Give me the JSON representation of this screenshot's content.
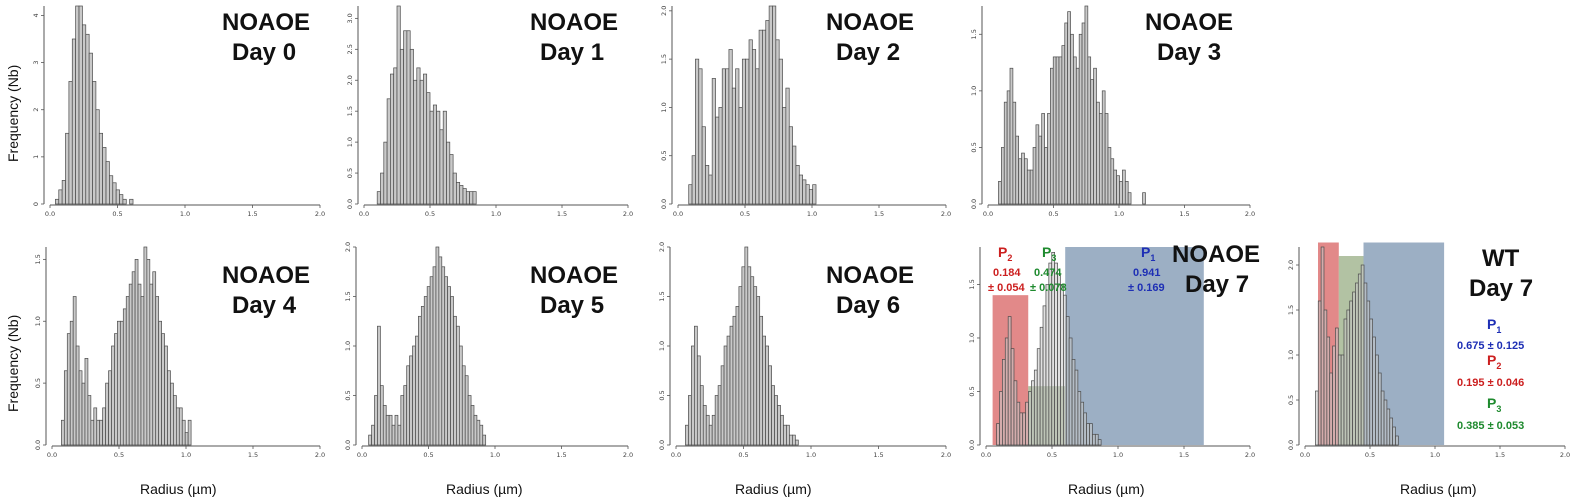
{
  "colors": {
    "bar_fill": "#c9c9c9",
    "bar_stroke": "#4a4a4a",
    "p1": "#1e2fb5",
    "p2": "#cc1f1f",
    "p3": "#1e8a2e",
    "p1_region": "#5a7a9c",
    "p2_region": "#cf3b3b",
    "p3_region": "#7f9966"
  },
  "chart_data": [
    {
      "type": "bar",
      "title_line1": "NOAOE",
      "title_line2": "Day 0",
      "xlabel": "",
      "ylabel": "Frequency (Nb)",
      "xlim": [
        0,
        2
      ],
      "ylim": [
        0,
        4.2
      ],
      "x_ticks": [
        "0.0",
        "0.5",
        "1.0",
        "1.5",
        "2.0"
      ],
      "y_ticks": [
        "0",
        "1",
        "2",
        "3",
        "4"
      ],
      "bin_start": 0.04,
      "bin_width": 0.025,
      "values": [
        0.1,
        0.3,
        0.5,
        1.5,
        2.6,
        3.5,
        4.2,
        4.2,
        3.8,
        3.6,
        3.2,
        2.6,
        2.0,
        1.5,
        1.2,
        0.9,
        0.6,
        0.45,
        0.3,
        0.2,
        0.1,
        0,
        0.1
      ],
      "regions": []
    },
    {
      "type": "bar",
      "title_line1": "NOAOE",
      "title_line2": "Day 1",
      "xlabel": "",
      "ylabel": "",
      "xlim": [
        0,
        2
      ],
      "ylim": [
        0,
        3.2
      ],
      "x_ticks": [
        "0.0",
        "0.5",
        "1.0",
        "1.5",
        "2.0"
      ],
      "y_ticks": [
        "0.0",
        "0.5",
        "1.0",
        "1.5",
        "2.0",
        "2.5",
        "3.0"
      ],
      "bin_start": 0.1,
      "bin_width": 0.025,
      "values": [
        0.2,
        0.5,
        1.0,
        1.7,
        2.1,
        2.2,
        3.2,
        2.5,
        2.8,
        2.8,
        2.5,
        2.0,
        2.2,
        2.0,
        2.1,
        1.8,
        1.5,
        1.6,
        1.5,
        1.2,
        1.5,
        1.0,
        0.8,
        0.5,
        0.35,
        0.3,
        0.25,
        0.2,
        0.2,
        0.2
      ],
      "regions": []
    },
    {
      "type": "bar",
      "title_line1": "NOAOE",
      "title_line2": "Day 2",
      "xlabel": "",
      "ylabel": "",
      "xlim": [
        0,
        2
      ],
      "ylim": [
        0,
        2.05
      ],
      "x_ticks": [
        "0.0",
        "0.5",
        "1.0",
        "1.5",
        "2.0"
      ],
      "y_ticks": [
        "0.0",
        "0.5",
        "1.0",
        "1.5",
        "2.0"
      ],
      "bin_start": 0.08,
      "bin_width": 0.025,
      "values": [
        0.2,
        0.5,
        1.5,
        1.4,
        0.8,
        0.4,
        0.3,
        1.3,
        0.9,
        1.0,
        1.4,
        1.4,
        1.6,
        1.2,
        1.4,
        1.0,
        1.5,
        1.5,
        1.7,
        1.6,
        1.4,
        1.8,
        1.8,
        1.9,
        2.05,
        2.05,
        1.7,
        1.5,
        1.0,
        1.2,
        0.8,
        0.6,
        0.4,
        0.3,
        0.25,
        0.2,
        0.15,
        0.2
      ],
      "regions": []
    },
    {
      "type": "bar",
      "title_line1": "NOAOE",
      "title_line2": "Day 3",
      "xlabel": "",
      "ylabel": "",
      "xlim": [
        0,
        2
      ],
      "ylim": [
        0,
        1.75
      ],
      "x_ticks": [
        "0.0",
        "0.5",
        "1.0",
        "1.5",
        "2.0"
      ],
      "y_ticks": [
        "0.0",
        "0.5",
        "1.0",
        "1.5"
      ],
      "bin_start": 0.08,
      "bin_width": 0.022,
      "values": [
        0.2,
        0.5,
        0.9,
        1.0,
        1.2,
        0.9,
        0.6,
        0.4,
        0.45,
        0.4,
        0.3,
        0.3,
        0.5,
        0.7,
        0.6,
        0.8,
        0.5,
        0.8,
        1.2,
        1.3,
        1.3,
        1.3,
        1.4,
        1.6,
        1.7,
        1.5,
        1.3,
        1.2,
        1.5,
        1.6,
        1.75,
        1.3,
        1.1,
        1.2,
        0.9,
        0.8,
        1.0,
        0.8,
        0.5,
        0.4,
        0.3,
        0.25,
        0.2,
        0.3,
        0.2,
        0.1,
        0,
        0,
        0,
        0,
        0.1
      ],
      "regions": []
    },
    {
      "type": "bar",
      "title_line1": "NOAOE",
      "title_line2": "Day 4",
      "xlabel": "Radius (µm)",
      "ylabel": "Frequency (Nb)",
      "xlim": [
        0,
        2
      ],
      "ylim": [
        0,
        1.6
      ],
      "x_ticks": [
        "0.0",
        "0.5",
        "1.0",
        "1.5",
        "2.0"
      ],
      "y_ticks": [
        "0.0",
        "0.5",
        "1.0",
        "1.5"
      ],
      "bin_start": 0.07,
      "bin_width": 0.022,
      "values": [
        0.2,
        0.6,
        0.9,
        1.0,
        1.2,
        0.8,
        0.6,
        0.5,
        0.7,
        0.4,
        0.2,
        0.3,
        0.2,
        0.2,
        0.3,
        0.5,
        0.6,
        0.8,
        0.9,
        1.0,
        1.0,
        1.1,
        1.2,
        1.3,
        1.4,
        1.5,
        1.3,
        1.2,
        1.6,
        1.5,
        1.3,
        1.4,
        1.2,
        1.0,
        0.9,
        0.8,
        0.6,
        0.5,
        0.4,
        0.3,
        0.3,
        0.2,
        0.1,
        0.2
      ],
      "regions": []
    },
    {
      "type": "bar",
      "title_line1": "NOAOE",
      "title_line2": "Day 5",
      "xlabel": "Radius (µm)",
      "ylabel": "",
      "xlim": [
        0,
        2
      ],
      "ylim": [
        0,
        2.0
      ],
      "x_ticks": [
        "0.0",
        "0.5",
        "1.0",
        "1.5",
        "2.0"
      ],
      "y_ticks": [
        "0.0",
        "0.5",
        "1.0",
        "1.5",
        "2.0"
      ],
      "bin_start": 0.05,
      "bin_width": 0.022,
      "values": [
        0.1,
        0.2,
        0.5,
        1.2,
        0.6,
        0.4,
        0.3,
        0.3,
        0.2,
        0.3,
        0.2,
        0.5,
        0.6,
        0.8,
        0.9,
        1.0,
        1.1,
        1.3,
        1.4,
        1.5,
        1.6,
        1.7,
        1.8,
        2.0,
        1.9,
        1.8,
        1.7,
        1.6,
        1.5,
        1.3,
        1.2,
        1.0,
        0.8,
        0.7,
        0.5,
        0.4,
        0.3,
        0.25,
        0.2,
        0.1
      ],
      "regions": []
    },
    {
      "type": "bar",
      "title_line1": "NOAOE",
      "title_line2": "Day 6",
      "xlabel": "Radius (µm)",
      "ylabel": "",
      "xlim": [
        0,
        2
      ],
      "ylim": [
        0,
        2.0
      ],
      "x_ticks": [
        "0.0",
        "0.5",
        "1.0",
        "1.5",
        "2.0"
      ],
      "y_ticks": [
        "0.0",
        "0.5",
        "1.0",
        "1.5",
        "2.0"
      ],
      "bin_start": 0.07,
      "bin_width": 0.022,
      "values": [
        0.2,
        0.5,
        1.0,
        1.2,
        0.9,
        0.6,
        0.4,
        0.3,
        0.2,
        0.3,
        0.5,
        0.6,
        0.8,
        1.0,
        1.1,
        1.2,
        1.3,
        1.4,
        1.6,
        1.8,
        2.0,
        1.8,
        1.7,
        1.6,
        1.5,
        1.3,
        1.1,
        1.0,
        0.8,
        0.6,
        0.5,
        0.4,
        0.3,
        0.2,
        0.2,
        0.1,
        0.1,
        0.05
      ],
      "regions": []
    },
    {
      "type": "bar",
      "title_line1": "NOAOE",
      "title_line2": "Day 7",
      "xlabel": "Radius (µm)",
      "ylabel": "",
      "xlim": [
        0,
        2
      ],
      "ylim": [
        0,
        1.85
      ],
      "x_ticks": [
        "0.0",
        "0.5",
        "1.0",
        "1.5",
        "2.0"
      ],
      "y_ticks": [
        "0.0",
        "0.5",
        "1.0",
        "1.5"
      ],
      "bin_start": 0.08,
      "bin_width": 0.022,
      "values": [
        0.2,
        0.5,
        0.8,
        1.0,
        1.2,
        0.9,
        0.6,
        0.4,
        0.3,
        0.3,
        0.4,
        0.5,
        0.6,
        0.7,
        0.9,
        1.1,
        1.3,
        1.5,
        1.7,
        1.8,
        1.7,
        1.6,
        1.5,
        1.4,
        1.2,
        1.0,
        0.8,
        0.7,
        0.5,
        0.4,
        0.3,
        0.2,
        0.2,
        0.1,
        0.1,
        0.05
      ],
      "regions": [
        {
          "x0": 0.05,
          "x1": 0.32,
          "h": 1.4,
          "color": "#cf3b3b"
        },
        {
          "x0": 0.32,
          "x1": 0.6,
          "h": 0.55,
          "color": "#7f9966"
        },
        {
          "x0": 0.6,
          "x1": 1.65,
          "h": 1.85,
          "color": "#5a7a9c"
        }
      ],
      "annotations": {
        "p2_name": "P",
        "p2_sub": "2",
        "p2_val1": "0.184",
        "p2_val2": "± 0.054",
        "p3_name": "P",
        "p3_sub": "3",
        "p3_val1": "0.474",
        "p3_val2": "± 0.078",
        "p1_name": "P",
        "p1_sub": "1",
        "p1_val1": "0.941",
        "p1_val2": "± 0.169"
      }
    },
    {
      "type": "bar",
      "title_line1": "WT",
      "title_line2": "Day 7",
      "xlabel": "Radius (µm)",
      "ylabel": "",
      "xlim": [
        0,
        2
      ],
      "ylim": [
        0,
        2.2
      ],
      "x_ticks": [
        "0.0",
        "0.5",
        "1.0",
        "1.5",
        "2.0"
      ],
      "y_ticks": [
        "0.0",
        "0.5",
        "1.0",
        "1.5",
        "2.0"
      ],
      "bin_start": 0.08,
      "bin_width": 0.022,
      "values": [
        0.6,
        1.6,
        2.2,
        1.5,
        1.2,
        0.8,
        1.1,
        1.3,
        1.0,
        1.0,
        1.4,
        1.5,
        1.6,
        1.7,
        1.8,
        1.9,
        2.0,
        1.8,
        1.6,
        1.4,
        1.2,
        1.0,
        0.8,
        0.6,
        0.5,
        0.4,
        0.3,
        0.2,
        0.1
      ],
      "regions": [
        {
          "x0": 0.1,
          "x1": 0.26,
          "h": 2.25,
          "color": "#cf3b3b"
        },
        {
          "x0": 0.26,
          "x1": 0.45,
          "h": 2.1,
          "color": "#7f9966"
        },
        {
          "x0": 0.45,
          "x1": 1.07,
          "h": 2.25,
          "color": "#5a7a9c"
        }
      ],
      "annotations": {
        "p1_name": "P",
        "p1_sub": "1",
        "p1_val": "0.675 ± 0.125",
        "p2_name": "P",
        "p2_sub": "2",
        "p2_val": "0.195 ± 0.046",
        "p3_name": "P",
        "p3_sub": "3",
        "p3_val": "0.385 ± 0.053"
      }
    }
  ]
}
